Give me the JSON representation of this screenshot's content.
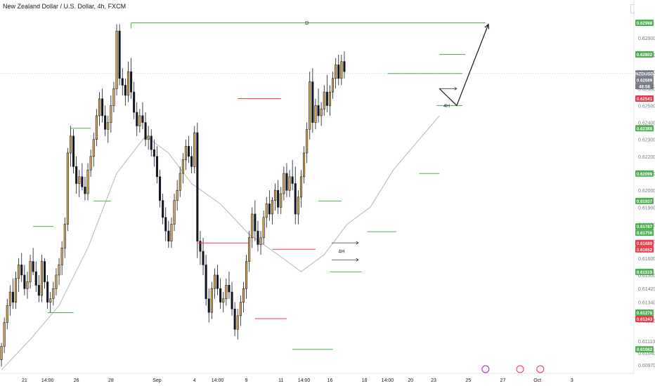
{
  "header": {
    "title": "New Zealand Dollar / U.S. Dollar, 4h, FXCM",
    "currency": "USD"
  },
  "chart_data": {
    "type": "candlestick",
    "symbol": "NZDUSD",
    "timeframe": "4h",
    "ylim": [
      0.6092,
      0.6304
    ],
    "price_ticks": [
      "0.62900",
      "0.62800",
      "0.62700",
      "0.62600",
      "0.62500",
      "0.62400",
      "0.62300",
      "0.62200",
      "0.62100",
      "0.62000",
      "0.61900",
      "0.61800",
      "0.61700",
      "0.61600",
      "0.61500",
      "0.61420",
      "0.61340",
      "0.61230",
      "0.61110",
      "0.61040",
      "0.60970"
    ],
    "x_ticks": [
      {
        "label": "21",
        "i": 8
      },
      {
        "label": "14:00",
        "i": 16
      },
      {
        "label": "26",
        "i": 26
      },
      {
        "label": "28",
        "i": 38
      },
      {
        "label": "Sep",
        "i": 54
      },
      {
        "label": "4",
        "i": 67
      },
      {
        "label": "14:00",
        "i": 75
      },
      {
        "label": "9",
        "i": 85
      },
      {
        "label": "11",
        "i": 97
      },
      {
        "label": "14:00",
        "i": 105
      },
      {
        "label": "16",
        "i": 114
      },
      {
        "label": "18",
        "i": 126
      },
      {
        "label": "14:00",
        "i": 134
      },
      {
        "label": "20",
        "i": 142
      },
      {
        "label": "23",
        "i": 150
      },
      {
        "label": "25",
        "i": 162
      },
      {
        "label": "27",
        "i": 174
      },
      {
        "label": "Oct",
        "i": 186
      },
      {
        "label": "3",
        "i": 198
      }
    ],
    "price_tags": [
      {
        "label": "0.62988",
        "value": 0.62988,
        "color": "#4caf50"
      },
      {
        "label": "0.62802",
        "value": 0.62802,
        "color": "#4caf50"
      },
      {
        "label": "NZDUSD",
        "value": 0.62689,
        "color": "#787b86"
      },
      {
        "label": "0.62689",
        "value": 0.62689,
        "color": "#787b86"
      },
      {
        "label": "48:58",
        "value": 0.62689,
        "color": "#787b86"
      },
      {
        "label": "0.62541",
        "value": 0.62541,
        "color": "#f23645"
      },
      {
        "label": "0.62366",
        "value": 0.62366,
        "color": "#4caf50"
      },
      {
        "label": "0.62099",
        "value": 0.62099,
        "color": "#4caf50"
      },
      {
        "label": "0.61937",
        "value": 0.61937,
        "color": "#4caf50"
      },
      {
        "label": "0.61787",
        "value": 0.61787,
        "color": "#4caf50"
      },
      {
        "label": "0.61756",
        "value": 0.61756,
        "color": "#4caf50"
      },
      {
        "label": "0.61689",
        "value": 0.61689,
        "color": "#f23645"
      },
      {
        "label": "0.61652",
        "value": 0.61652,
        "color": "#f23645"
      },
      {
        "label": "0.61519",
        "value": 0.61519,
        "color": "#4caf50"
      },
      {
        "label": "0.61278",
        "value": 0.61278,
        "color": "#4caf50"
      },
      {
        "label": "0.61243",
        "value": 0.61243,
        "color": "#f23645"
      },
      {
        "label": "0.61062",
        "value": 0.61062,
        "color": "#4caf50"
      }
    ],
    "levels": [
      {
        "start": 45,
        "end": 168,
        "value": 0.62988,
        "color": "#4caf50",
        "label": "D"
      },
      {
        "start": 152,
        "end": 161,
        "value": 0.62802,
        "color": "#4caf50",
        "label": ""
      },
      {
        "start": 134,
        "end": 160,
        "value": 0.62689,
        "color": "#4caf50",
        "label": ""
      },
      {
        "start": 82,
        "end": 97,
        "value": 0.62541,
        "color": "#f23645",
        "label": ""
      },
      {
        "start": 151,
        "end": 160,
        "value": 0.625,
        "color": "#4caf50",
        "label": "4H"
      },
      {
        "start": 24,
        "end": 31,
        "value": 0.62366,
        "color": "#4caf50",
        "label": ""
      },
      {
        "start": 145,
        "end": 152,
        "value": 0.62099,
        "color": "#4caf50",
        "label": ""
      },
      {
        "start": 32,
        "end": 38,
        "value": 0.61937,
        "color": "#4caf50",
        "label": ""
      },
      {
        "start": 110,
        "end": 118,
        "value": 0.61937,
        "color": "#4caf50",
        "label": ""
      },
      {
        "start": 11,
        "end": 18,
        "value": 0.61787,
        "color": "#4caf50",
        "label": ""
      },
      {
        "start": 127,
        "end": 137,
        "value": 0.61756,
        "color": "#4caf50",
        "label": ""
      },
      {
        "start": 68,
        "end": 86,
        "value": 0.61689,
        "color": "#f23645",
        "label": ""
      },
      {
        "start": 94,
        "end": 109,
        "value": 0.61652,
        "color": "#f23645",
        "label": ""
      },
      {
        "start": 114,
        "end": 125,
        "value": 0.61519,
        "color": "#4caf50",
        "label": ""
      },
      {
        "start": 16,
        "end": 25,
        "value": 0.61278,
        "color": "#4caf50",
        "label": ""
      },
      {
        "start": 88,
        "end": 99,
        "value": 0.61243,
        "color": "#f23645",
        "label": ""
      },
      {
        "start": 101,
        "end": 115,
        "value": 0.61062,
        "color": "#4caf50",
        "label": ""
      }
    ],
    "annotations": [
      {
        "text": "4H",
        "i": 118,
        "value": 0.6164
      },
      {
        "text": "D",
        "i": 106,
        "value": 0.62988
      }
    ],
    "projection": [
      {
        "i": 152,
        "value": 0.626
      },
      {
        "i": 158,
        "value": 0.625
      },
      {
        "i": 169,
        "value": 0.6298
      }
    ],
    "candles": [
      [
        0.61,
        0.611,
        0.6096,
        0.6108
      ],
      [
        0.6108,
        0.6125,
        0.6104,
        0.6122
      ],
      [
        0.6122,
        0.6136,
        0.6118,
        0.6132
      ],
      [
        0.6132,
        0.6144,
        0.6126,
        0.614
      ],
      [
        0.614,
        0.6148,
        0.613,
        0.6134
      ],
      [
        0.6134,
        0.6152,
        0.613,
        0.6148
      ],
      [
        0.6148,
        0.616,
        0.614,
        0.6156
      ],
      [
        0.6156,
        0.6163,
        0.6146,
        0.615
      ],
      [
        0.615,
        0.6156,
        0.6138,
        0.6142
      ],
      [
        0.6142,
        0.6152,
        0.6136,
        0.6146
      ],
      [
        0.6146,
        0.6162,
        0.6142,
        0.6158
      ],
      [
        0.6158,
        0.6166,
        0.615,
        0.6152
      ],
      [
        0.6152,
        0.6158,
        0.614,
        0.6144
      ],
      [
        0.6144,
        0.615,
        0.6134,
        0.6138
      ],
      [
        0.6138,
        0.6162,
        0.6134,
        0.6158
      ],
      [
        0.6158,
        0.616,
        0.6142,
        0.6146
      ],
      [
        0.6146,
        0.615,
        0.613,
        0.6134
      ],
      [
        0.6134,
        0.614,
        0.6128,
        0.6136
      ],
      [
        0.6136,
        0.6146,
        0.6132,
        0.6142
      ],
      [
        0.6142,
        0.6154,
        0.6138,
        0.615
      ],
      [
        0.615,
        0.616,
        0.6144,
        0.6156
      ],
      [
        0.6156,
        0.617,
        0.615,
        0.6166
      ],
      [
        0.6166,
        0.6184,
        0.616,
        0.618
      ],
      [
        0.618,
        0.6225,
        0.6176,
        0.6222
      ],
      [
        0.6222,
        0.6238,
        0.6214,
        0.6232
      ],
      [
        0.6232,
        0.6236,
        0.621,
        0.6214
      ],
      [
        0.6214,
        0.622,
        0.6198,
        0.6204
      ],
      [
        0.6204,
        0.6212,
        0.6196,
        0.6208
      ],
      [
        0.6208,
        0.6216,
        0.62,
        0.6202
      ],
      [
        0.6202,
        0.6208,
        0.6194,
        0.6198
      ],
      [
        0.6198,
        0.6216,
        0.6194,
        0.6212
      ],
      [
        0.6212,
        0.6224,
        0.6208,
        0.622
      ],
      [
        0.622,
        0.6234,
        0.6214,
        0.623
      ],
      [
        0.623,
        0.6248,
        0.6226,
        0.6244
      ],
      [
        0.6244,
        0.6258,
        0.6238,
        0.6254
      ],
      [
        0.6254,
        0.626,
        0.624,
        0.6244
      ],
      [
        0.6244,
        0.625,
        0.6232,
        0.6236
      ],
      [
        0.6236,
        0.6244,
        0.6228,
        0.624
      ],
      [
        0.624,
        0.6256,
        0.6234,
        0.625
      ],
      [
        0.625,
        0.6264,
        0.6246,
        0.626
      ],
      [
        0.626,
        0.6298,
        0.6256,
        0.6294
      ],
      [
        0.6294,
        0.6298,
        0.6262,
        0.6266
      ],
      [
        0.6266,
        0.6272,
        0.6256,
        0.6262
      ],
      [
        0.6262,
        0.6266,
        0.625,
        0.6256
      ],
      [
        0.6256,
        0.6276,
        0.6252,
        0.627
      ],
      [
        0.627,
        0.6278,
        0.6254,
        0.6258
      ],
      [
        0.6258,
        0.6264,
        0.6242,
        0.6246
      ],
      [
        0.6246,
        0.6252,
        0.6232,
        0.6238
      ],
      [
        0.6238,
        0.6248,
        0.6234,
        0.6244
      ],
      [
        0.6244,
        0.6252,
        0.6236,
        0.624
      ],
      [
        0.624,
        0.6246,
        0.6226,
        0.623
      ],
      [
        0.623,
        0.6238,
        0.6224,
        0.6232
      ],
      [
        0.6232,
        0.6236,
        0.622,
        0.6224
      ],
      [
        0.6224,
        0.623,
        0.6214,
        0.622
      ],
      [
        0.622,
        0.6226,
        0.6204,
        0.6208
      ],
      [
        0.6208,
        0.6212,
        0.619,
        0.6194
      ],
      [
        0.6194,
        0.6198,
        0.618,
        0.6184
      ],
      [
        0.6184,
        0.619,
        0.617,
        0.6176
      ],
      [
        0.6176,
        0.6182,
        0.6166,
        0.617
      ],
      [
        0.617,
        0.6184,
        0.6166,
        0.618
      ],
      [
        0.618,
        0.6198,
        0.6176,
        0.6194
      ],
      [
        0.6194,
        0.6206,
        0.6188,
        0.62
      ],
      [
        0.62,
        0.6214,
        0.6196,
        0.621
      ],
      [
        0.621,
        0.6222,
        0.6204,
        0.6218
      ],
      [
        0.6218,
        0.623,
        0.6212,
        0.6226
      ],
      [
        0.6226,
        0.6232,
        0.6216,
        0.622
      ],
      [
        0.622,
        0.6226,
        0.621,
        0.6214
      ],
      [
        0.6214,
        0.6238,
        0.621,
        0.6234
      ],
      [
        0.6234,
        0.624,
        0.616,
        0.617
      ],
      [
        0.617,
        0.6176,
        0.6156,
        0.6164
      ],
      [
        0.6164,
        0.6172,
        0.615,
        0.6156
      ],
      [
        0.6156,
        0.6162,
        0.6132,
        0.6136
      ],
      [
        0.6136,
        0.6142,
        0.6122,
        0.6128
      ],
      [
        0.6128,
        0.6146,
        0.6124,
        0.6142
      ],
      [
        0.6142,
        0.6154,
        0.6136,
        0.615
      ],
      [
        0.615,
        0.6156,
        0.6138,
        0.6142
      ],
      [
        0.6142,
        0.6148,
        0.613,
        0.6134
      ],
      [
        0.6134,
        0.614,
        0.6128,
        0.6136
      ],
      [
        0.6136,
        0.6148,
        0.6132,
        0.6144
      ],
      [
        0.6144,
        0.6152,
        0.6136,
        0.614
      ],
      [
        0.614,
        0.6146,
        0.6126,
        0.613
      ],
      [
        0.613,
        0.6134,
        0.6114,
        0.6118
      ],
      [
        0.6118,
        0.613,
        0.6112,
        0.6126
      ],
      [
        0.6126,
        0.6138,
        0.612,
        0.6134
      ],
      [
        0.6134,
        0.6146,
        0.6128,
        0.6142
      ],
      [
        0.6142,
        0.6162,
        0.6136,
        0.6158
      ],
      [
        0.6158,
        0.6176,
        0.6152,
        0.6172
      ],
      [
        0.6172,
        0.619,
        0.6166,
        0.6186
      ],
      [
        0.6186,
        0.6194,
        0.617,
        0.6176
      ],
      [
        0.6176,
        0.6182,
        0.6164,
        0.6168
      ],
      [
        0.6168,
        0.6176,
        0.6162,
        0.6172
      ],
      [
        0.6172,
        0.6188,
        0.6168,
        0.6184
      ],
      [
        0.6184,
        0.6196,
        0.6178,
        0.6192
      ],
      [
        0.6192,
        0.62,
        0.6182,
        0.6186
      ],
      [
        0.6186,
        0.6196,
        0.618,
        0.6194
      ],
      [
        0.6194,
        0.6204,
        0.6188,
        0.62
      ],
      [
        0.62,
        0.6206,
        0.6186,
        0.619
      ],
      [
        0.619,
        0.6202,
        0.6186,
        0.6198
      ],
      [
        0.6198,
        0.6214,
        0.6194,
        0.621
      ],
      [
        0.621,
        0.6216,
        0.6196,
        0.62
      ],
      [
        0.62,
        0.6212,
        0.6196,
        0.6208
      ],
      [
        0.6208,
        0.6218,
        0.62,
        0.6204
      ],
      [
        0.6204,
        0.6214,
        0.618,
        0.6186
      ],
      [
        0.6186,
        0.62,
        0.618,
        0.6196
      ],
      [
        0.6196,
        0.6212,
        0.619,
        0.6208
      ],
      [
        0.6208,
        0.6226,
        0.6204,
        0.6222
      ],
      [
        0.6222,
        0.624,
        0.6216,
        0.6236
      ],
      [
        0.6236,
        0.627,
        0.623,
        0.6264
      ],
      [
        0.6264,
        0.6272,
        0.6234,
        0.624
      ],
      [
        0.624,
        0.6254,
        0.6236,
        0.625
      ],
      [
        0.625,
        0.626,
        0.624,
        0.6244
      ],
      [
        0.6244,
        0.6252,
        0.6238,
        0.6248
      ],
      [
        0.6248,
        0.6262,
        0.6244,
        0.6258
      ],
      [
        0.6258,
        0.6268,
        0.6246,
        0.625
      ],
      [
        0.625,
        0.6262,
        0.6244,
        0.6258
      ],
      [
        0.6258,
        0.627,
        0.6254,
        0.6266
      ],
      [
        0.6266,
        0.6278,
        0.626,
        0.6274
      ],
      [
        0.6274,
        0.628,
        0.6262,
        0.6266
      ],
      [
        0.6266,
        0.628,
        0.6262,
        0.6276
      ],
      [
        0.6276,
        0.6282,
        0.6266,
        0.627
      ]
    ],
    "moving_average": {
      "name": "",
      "color": "#b2b5be",
      "points": [
        {
          "i": 0,
          "value": 0.6094
        },
        {
          "i": 10,
          "value": 0.6112
        },
        {
          "i": 20,
          "value": 0.6132
        },
        {
          "i": 30,
          "value": 0.6166
        },
        {
          "i": 40,
          "value": 0.621
        },
        {
          "i": 50,
          "value": 0.6232
        },
        {
          "i": 58,
          "value": 0.6222
        },
        {
          "i": 66,
          "value": 0.6204
        },
        {
          "i": 76,
          "value": 0.6192
        },
        {
          "i": 86,
          "value": 0.6174
        },
        {
          "i": 96,
          "value": 0.6162
        },
        {
          "i": 104,
          "value": 0.6152
        },
        {
          "i": 112,
          "value": 0.6162
        },
        {
          "i": 120,
          "value": 0.618
        },
        {
          "i": 128,
          "value": 0.619
        },
        {
          "i": 136,
          "value": 0.6212
        },
        {
          "i": 144,
          "value": 0.6228
        },
        {
          "i": 152,
          "value": 0.6244
        }
      ]
    },
    "icons": [
      {
        "name": "lightning-event-icon",
        "i": 168,
        "color": "#9c27b0"
      },
      {
        "name": "us-flag-event-icon",
        "i": 180,
        "color": "#f23645"
      },
      {
        "name": "us-flag-event-icon",
        "i": 187,
        "color": "#f23645"
      }
    ]
  }
}
